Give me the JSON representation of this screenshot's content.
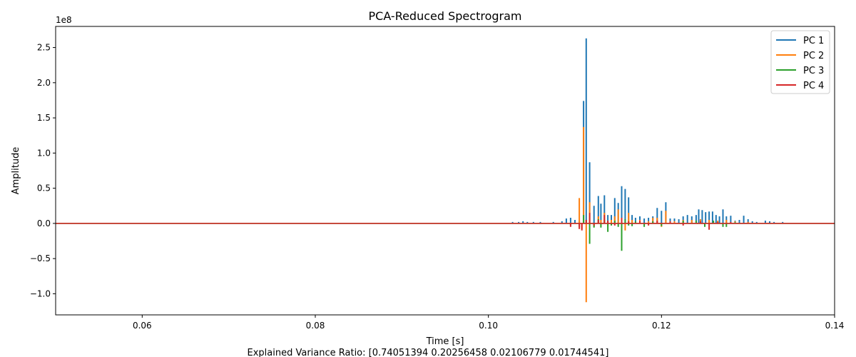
{
  "chart_data": {
    "type": "line",
    "title": "PCA-Reduced Spectrogram",
    "xlabel": "Time [s]",
    "ylabel": "Amplitude",
    "y_scale_label": "1e8",
    "caption": "Explained Variance Ratio: [0.74051394 0.20256458 0.02106779 0.01744541]",
    "xlim": [
      0.05,
      0.14
    ],
    "ylim": [
      -1.3,
      2.8
    ],
    "x_ticks": [
      0.06,
      0.08,
      0.1,
      0.12,
      0.14
    ],
    "x_tick_labels": [
      "0.06",
      "0.08",
      "0.10",
      "0.12",
      "0.14"
    ],
    "y_ticks": [
      -1.0,
      -0.5,
      0.0,
      0.5,
      1.0,
      1.5,
      2.0,
      2.5
    ],
    "y_tick_labels": [
      "−1.0",
      "−0.5",
      "0.0",
      "0.5",
      "1.0",
      "1.5",
      "2.0",
      "2.5"
    ],
    "grid": false,
    "legend_position": "top-right",
    "series": [
      {
        "name": "PC 1",
        "color": "#1f77b4",
        "spikes": [
          [
            0.1028,
            0.02
          ],
          [
            0.1035,
            0.02
          ],
          [
            0.104,
            0.03
          ],
          [
            0.1045,
            0.02
          ],
          [
            0.1052,
            0.02
          ],
          [
            0.106,
            0.02
          ],
          [
            0.1075,
            0.02
          ],
          [
            0.1085,
            0.03
          ],
          [
            0.109,
            0.07
          ],
          [
            0.1095,
            0.08
          ],
          [
            0.11,
            0.05
          ],
          [
            0.1105,
            0.04
          ],
          [
            0.111,
            1.74
          ],
          [
            0.1113,
            2.63
          ],
          [
            0.1117,
            0.87
          ],
          [
            0.1122,
            0.25
          ],
          [
            0.1127,
            0.39
          ],
          [
            0.113,
            0.28
          ],
          [
            0.1134,
            0.4
          ],
          [
            0.1138,
            0.12
          ],
          [
            0.1142,
            0.12
          ],
          [
            0.1146,
            0.36
          ],
          [
            0.115,
            0.29
          ],
          [
            0.1154,
            0.53
          ],
          [
            0.1158,
            0.49
          ],
          [
            0.1162,
            0.37
          ],
          [
            0.1166,
            0.12
          ],
          [
            0.117,
            0.08
          ],
          [
            0.1175,
            0.1
          ],
          [
            0.118,
            0.07
          ],
          [
            0.1185,
            0.08
          ],
          [
            0.119,
            0.1
          ],
          [
            0.1195,
            0.22
          ],
          [
            0.12,
            0.18
          ],
          [
            0.1205,
            0.3
          ],
          [
            0.121,
            0.07
          ],
          [
            0.1215,
            0.07
          ],
          [
            0.122,
            0.06
          ],
          [
            0.1225,
            0.1
          ],
          [
            0.123,
            0.12
          ],
          [
            0.1235,
            0.1
          ],
          [
            0.124,
            0.12
          ],
          [
            0.1243,
            0.2
          ],
          [
            0.1247,
            0.19
          ],
          [
            0.1251,
            0.16
          ],
          [
            0.1255,
            0.17
          ],
          [
            0.1259,
            0.17
          ],
          [
            0.1263,
            0.12
          ],
          [
            0.1267,
            0.1
          ],
          [
            0.1271,
            0.2
          ],
          [
            0.1275,
            0.1
          ],
          [
            0.128,
            0.11
          ],
          [
            0.1285,
            0.04
          ],
          [
            0.129,
            0.05
          ],
          [
            0.1295,
            0.11
          ],
          [
            0.13,
            0.06
          ],
          [
            0.1305,
            0.03
          ],
          [
            0.131,
            0.02
          ],
          [
            0.132,
            0.04
          ],
          [
            0.1325,
            0.03
          ],
          [
            0.133,
            0.02
          ],
          [
            0.134,
            0.02
          ]
        ]
      },
      {
        "name": "PC 2",
        "color": "#ff7f0e",
        "spikes": [
          [
            0.1105,
            0.36
          ],
          [
            0.1108,
            -0.08
          ],
          [
            0.111,
            1.37
          ],
          [
            0.1113,
            -1.12
          ],
          [
            0.1117,
            0.3
          ],
          [
            0.1122,
            -0.05
          ],
          [
            0.1127,
            0.1
          ],
          [
            0.113,
            0.05
          ],
          [
            0.1134,
            0.15
          ],
          [
            0.1138,
            -0.04
          ],
          [
            0.1142,
            0.05
          ],
          [
            0.1146,
            0.1
          ],
          [
            0.115,
            0.2
          ],
          [
            0.1154,
            -0.1
          ],
          [
            0.1158,
            -0.1
          ],
          [
            0.1162,
            0.15
          ],
          [
            0.1166,
            0.05
          ],
          [
            0.1175,
            0.05
          ],
          [
            0.1185,
            0.03
          ],
          [
            0.119,
            0.08
          ],
          [
            0.1195,
            0.08
          ],
          [
            0.12,
            -0.05
          ],
          [
            0.1205,
            0.18
          ],
          [
            0.1215,
            0.03
          ],
          [
            0.1225,
            0.05
          ],
          [
            0.1235,
            0.05
          ],
          [
            0.1245,
            0.06
          ],
          [
            0.1255,
            0.05
          ],
          [
            0.1265,
            0.04
          ],
          [
            0.1275,
            0.05
          ],
          [
            0.1285,
            0.03
          ],
          [
            0.13,
            0.02
          ]
        ]
      },
      {
        "name": "PC 3",
        "color": "#2ca02c",
        "spikes": [
          [
            0.1095,
            -0.03
          ],
          [
            0.1105,
            -0.05
          ],
          [
            0.111,
            0.12
          ],
          [
            0.1113,
            0.05
          ],
          [
            0.1117,
            -0.29
          ],
          [
            0.1122,
            -0.06
          ],
          [
            0.1127,
            0.06
          ],
          [
            0.113,
            -0.06
          ],
          [
            0.1134,
            0.05
          ],
          [
            0.1138,
            -0.12
          ],
          [
            0.1142,
            -0.03
          ],
          [
            0.1146,
            0.04
          ],
          [
            0.115,
            -0.05
          ],
          [
            0.1154,
            -0.39
          ],
          [
            0.1158,
            0.06
          ],
          [
            0.1162,
            -0.03
          ],
          [
            0.1166,
            -0.04
          ],
          [
            0.117,
            0.03
          ],
          [
            0.118,
            -0.05
          ],
          [
            0.119,
            0.03
          ],
          [
            0.12,
            -0.04
          ],
          [
            0.121,
            0.03
          ],
          [
            0.1225,
            0.04
          ],
          [
            0.124,
            0.04
          ],
          [
            0.125,
            -0.05
          ],
          [
            0.126,
            0.04
          ],
          [
            0.1271,
            -0.05
          ],
          [
            0.1275,
            -0.05
          ],
          [
            0.1285,
            0.02
          ]
        ]
      },
      {
        "name": "PC 4",
        "color": "#d62728",
        "spikes": [
          [
            0.1095,
            -0.05
          ],
          [
            0.1105,
            -0.08
          ],
          [
            0.1108,
            -0.1
          ],
          [
            0.1113,
            0.05
          ],
          [
            0.1117,
            0.15
          ],
          [
            0.1122,
            -0.03
          ],
          [
            0.1127,
            0.05
          ],
          [
            0.1134,
            0.12
          ],
          [
            0.1138,
            0.04
          ],
          [
            0.1146,
            -0.03
          ],
          [
            0.1154,
            0.08
          ],
          [
            0.1162,
            0.03
          ],
          [
            0.1175,
            0.04
          ],
          [
            0.1185,
            -0.03
          ],
          [
            0.1195,
            0.04
          ],
          [
            0.121,
            0.03
          ],
          [
            0.1225,
            -0.03
          ],
          [
            0.1245,
            0.03
          ],
          [
            0.1255,
            -0.09
          ],
          [
            0.1265,
            0.02
          ],
          [
            0.128,
            0.02
          ]
        ]
      }
    ]
  }
}
